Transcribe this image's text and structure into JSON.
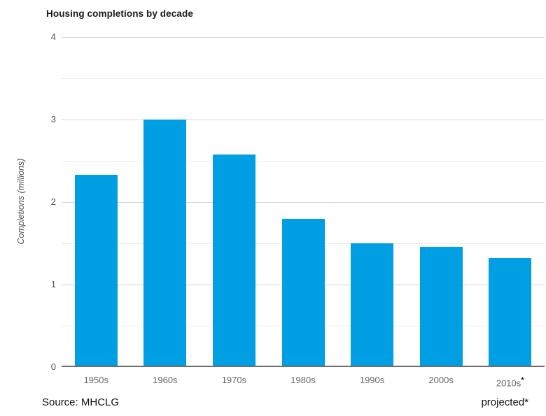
{
  "chart_data": {
    "type": "bar",
    "title": "Housing completions by decade",
    "ylabel": "Completions (millions)",
    "xlabel": "",
    "categories": [
      "1950s",
      "1960s",
      "1970s",
      "1980s",
      "1990s",
      "2000s",
      "2010s*"
    ],
    "values": [
      2.33,
      3.0,
      2.58,
      1.8,
      1.5,
      1.46,
      1.32
    ],
    "ylim": [
      0,
      4
    ],
    "yticks": [
      0,
      1,
      2,
      3,
      4
    ],
    "minor_tick_step": 0.5,
    "grid": "horizontal",
    "legend": "none",
    "bar_color": "#009ee3",
    "axis_color": "#6e6e6e",
    "source": "Source: MHCLG",
    "footnote": "projected*"
  }
}
